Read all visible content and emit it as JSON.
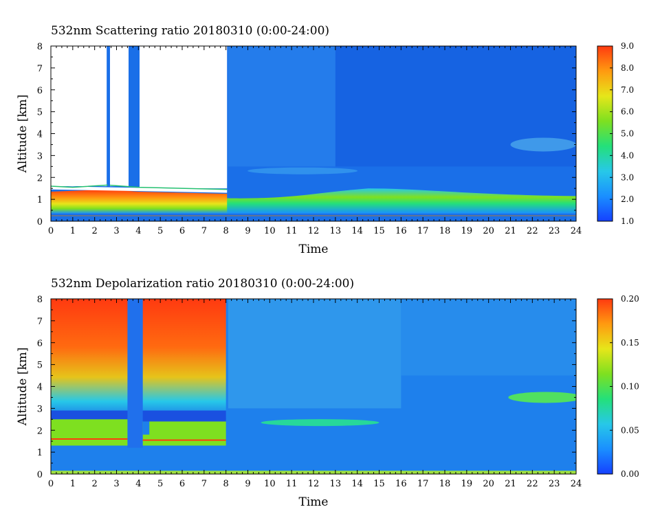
{
  "chart_data": [
    {
      "type": "heatmap",
      "title": "532nm Scattering ratio  20180310 (0:00-24:00)",
      "xlabel": "Time",
      "ylabel": "Altitude [km]",
      "xlim": [
        0,
        24
      ],
      "ylim": [
        0,
        8
      ],
      "xticks": [
        "0",
        "1",
        "2",
        "3",
        "4",
        "5",
        "6",
        "7",
        "8",
        "9",
        "10",
        "11",
        "12",
        "13",
        "14",
        "15",
        "16",
        "17",
        "18",
        "19",
        "20",
        "21",
        "22",
        "23",
        "24"
      ],
      "yticks": [
        "0",
        "1",
        "2",
        "3",
        "4",
        "5",
        "6",
        "7",
        "8"
      ],
      "colorbar": {
        "range": [
          1.0,
          9.0
        ],
        "labels": [
          "1.0",
          "2.0",
          "3.0",
          "4.0",
          "5.0",
          "6.0",
          "7.0",
          "8.0",
          "9.0"
        ],
        "colors": [
          "#1540ff",
          "#1a8fff",
          "#27c8e8",
          "#24e07a",
          "#7ee020",
          "#e6e61a",
          "#ff9a10",
          "#ff3a10"
        ]
      },
      "features": [
        {
          "name": "boundary layer aerosol",
          "time": [
            8,
            24
          ],
          "altitude": [
            0.4,
            1.5
          ],
          "value": 4.5
        },
        {
          "name": "cloud-top strong return",
          "time": [
            0,
            8
          ],
          "altitude": [
            0.9,
            1.4
          ],
          "value": 8.5
        },
        {
          "name": "upper aerosol layer",
          "time": [
            21,
            24
          ],
          "altitude": [
            3.2,
            3.8
          ],
          "value": 2.3
        },
        {
          "name": "background free troposphere",
          "time": [
            8,
            24
          ],
          "altitude": [
            1.5,
            8
          ],
          "value": 1.7
        }
      ],
      "no_data_regions": [
        {
          "time": [
            0,
            2.55
          ],
          "altitude": [
            1.6,
            8
          ]
        },
        {
          "time": [
            2.7,
            3.55
          ],
          "altitude": [
            1.6,
            8
          ]
        },
        {
          "time": [
            4.05,
            8.05
          ],
          "altitude": [
            1.5,
            8
          ]
        }
      ]
    },
    {
      "type": "heatmap",
      "title": "532nm Depolarization ratio  20180310 (0:00-24:00)",
      "xlabel": "Time",
      "ylabel": "Altitude [km]",
      "xlim": [
        0,
        24
      ],
      "ylim": [
        0,
        8
      ],
      "xticks": [
        "0",
        "1",
        "2",
        "3",
        "4",
        "5",
        "6",
        "7",
        "8",
        "9",
        "10",
        "11",
        "12",
        "13",
        "14",
        "15",
        "16",
        "17",
        "18",
        "19",
        "20",
        "21",
        "22",
        "23",
        "24"
      ],
      "yticks": [
        "0",
        "1",
        "2",
        "3",
        "4",
        "5",
        "6",
        "7",
        "8"
      ],
      "colorbar": {
        "range": [
          0.0,
          0.2
        ],
        "labels": [
          "0.00",
          "0.05",
          "0.10",
          "0.15",
          "0.20"
        ],
        "colors": [
          "#1540ff",
          "#1a8fff",
          "#27c8e8",
          "#24e07a",
          "#7ee020",
          "#e6e61a",
          "#ff9a10",
          "#ff3a10"
        ]
      },
      "features": [
        {
          "name": "noisy high depolarization",
          "time": [
            0,
            8
          ],
          "altitude": [
            3,
            8
          ],
          "value": 0.18
        },
        {
          "name": "ice cloud layer",
          "time": [
            0,
            8
          ],
          "altitude": [
            1.3,
            2.5
          ],
          "value": 0.1
        },
        {
          "name": "aerosol layer",
          "time": [
            9.5,
            15
          ],
          "altitude": [
            2.2,
            2.5
          ],
          "value": 0.07
        },
        {
          "name": "upper layer",
          "time": [
            21,
            24
          ],
          "altitude": [
            3.3,
            3.8
          ],
          "value": 0.08
        },
        {
          "name": "background",
          "time": [
            8,
            24
          ],
          "altitude": [
            0,
            8
          ],
          "value": 0.03
        }
      ]
    }
  ]
}
